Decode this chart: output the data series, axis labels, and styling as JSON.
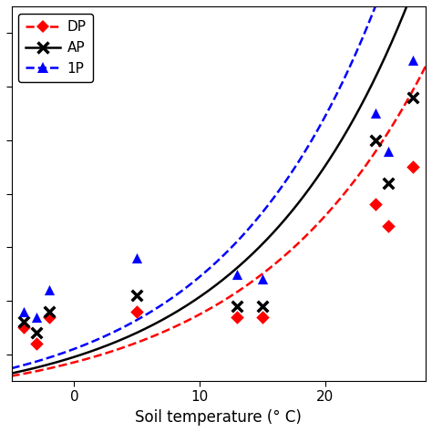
{
  "title": "",
  "xlabel": "Soil temperature (° C)",
  "ylabel": "",
  "xlim": [
    -5,
    28
  ],
  "ylim": [
    0.5,
    7.5
  ],
  "DP_scatter_x": [
    -4,
    -3,
    -2,
    5,
    13,
    15,
    24,
    25,
    27
  ],
  "DP_scatter_y": [
    1.5,
    1.2,
    1.7,
    1.8,
    1.7,
    1.7,
    3.8,
    3.4,
    4.5
  ],
  "AP_scatter_x": [
    -4,
    -3,
    -2,
    5,
    13,
    15,
    24,
    25,
    27
  ],
  "AP_scatter_y": [
    1.6,
    1.4,
    1.8,
    2.1,
    1.9,
    1.9,
    5.0,
    4.2,
    5.8
  ],
  "IP_scatter_x": [
    -4,
    -3,
    -2,
    5,
    13,
    15,
    24,
    25,
    27
  ],
  "IP_scatter_y": [
    1.8,
    1.7,
    2.2,
    2.8,
    2.5,
    2.4,
    5.5,
    4.8,
    6.5
  ],
  "curve_x_start": -5,
  "curve_x_end": 28,
  "DP_a": 0.85,
  "DP_b": 0.072,
  "AP_a": 0.95,
  "AP_b": 0.078,
  "IP_a": 1.1,
  "IP_b": 0.08,
  "DP_color": "#ff0000",
  "AP_color": "#000000",
  "IP_color": "#0000ff",
  "legend_labels": [
    "DP",
    "AP",
    "1P"
  ],
  "tick_fontsize": 11,
  "label_fontsize": 12,
  "xticks": [
    0,
    10,
    20
  ],
  "xtick_labels": [
    "0",
    "10",
    "20"
  ]
}
